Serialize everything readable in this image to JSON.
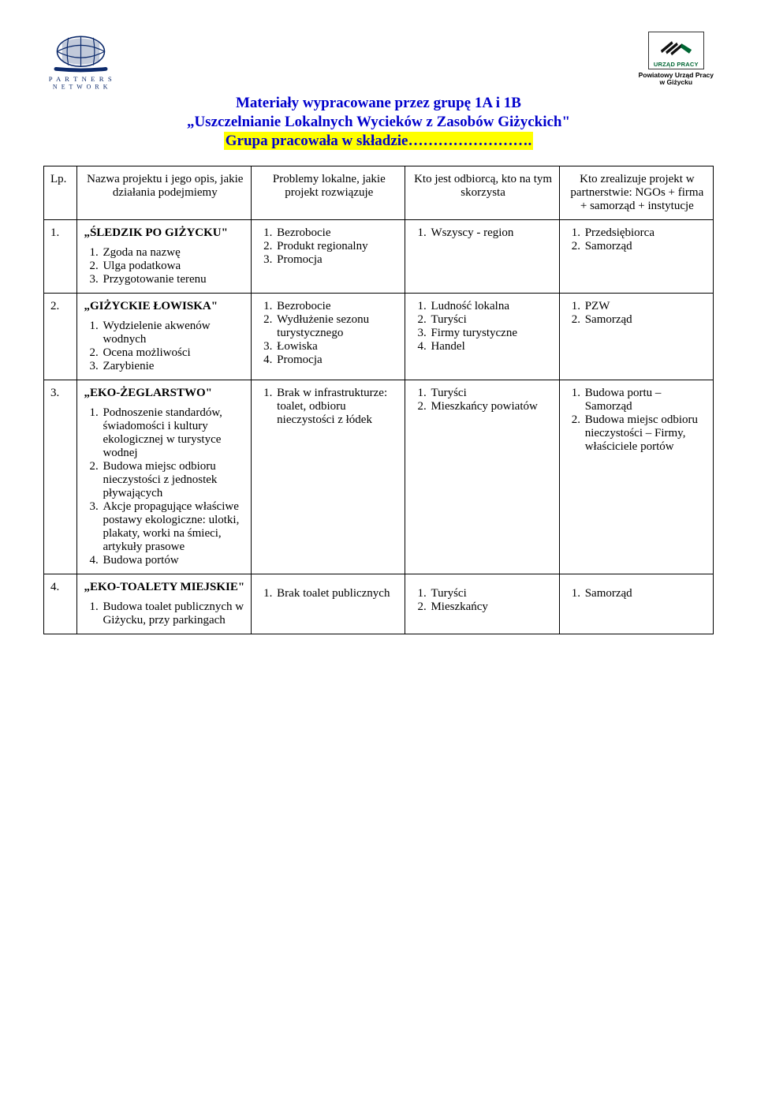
{
  "header": {
    "left_logo_text1": "P A R T N E R S",
    "left_logo_text2": "N E T W O R K",
    "right_logo_label": "URZĄD PRACY",
    "right_caption_l1": "Powiatowy Urząd Pracy",
    "right_caption_l2": "w Giżycku"
  },
  "title": {
    "line1": "Materiały wypracowane przez grupę 1A i 1B",
    "line2": "„Uszczelnianie Lokalnych Wycieków z Zasobów Giżyckich\"",
    "line3": "Grupa pracowała w składzie……………………."
  },
  "columns": {
    "lp": "Lp.",
    "name": "Nazwa projektu i jego opis, jakie działania podejmiemy",
    "problems": "Problemy lokalne, jakie projekt rozwiązuje",
    "who": "Kto jest odbiorcą, kto na tym skorzysta",
    "realizer": "Kto zrealizuje projekt w partnerstwie: NGOs + firma + samorząd + instytucje"
  },
  "rows": [
    {
      "lp": "1.",
      "title": "„ŚLEDZIK PO GIŻYCKU\"",
      "actions": [
        "Zgoda na nazwę",
        "Ulga podatkowa",
        "Przygotowanie terenu"
      ],
      "problems": [
        "Bezrobocie",
        "Produkt regionalny",
        "Promocja"
      ],
      "who": [
        "Wszyscy - region"
      ],
      "realizer": [
        "Przedsiębiorca",
        "Samorząd"
      ]
    },
    {
      "lp": "2.",
      "title": "„GIŻYCKIE ŁOWISKA\"",
      "actions": [
        "Wydzielenie akwenów wodnych",
        "Ocena możliwości",
        "Zarybienie"
      ],
      "problems": [
        "Bezrobocie",
        "Wydłużenie sezonu turystycznego",
        "Łowiska",
        "Promocja"
      ],
      "who": [
        "Ludność lokalna",
        "Turyści",
        "Firmy turystyczne",
        "Handel"
      ],
      "realizer": [
        " PZW",
        "Samorząd"
      ]
    },
    {
      "lp": "3.",
      "title": "„EKO-ŻEGLARSTWO\"",
      "actions": [
        "Podnoszenie standardów, świadomości i kultury ekologicznej w turystyce wodnej",
        "Budowa miejsc odbioru nieczystości z jednostek pływających",
        "Akcje propagujące właściwe postawy ekologiczne: ulotki, plakaty, worki na śmieci, artykuły prasowe",
        "Budowa portów"
      ],
      "problems": [
        "Brak w infrastrukturze: toalet, odbioru nieczystości z łódek"
      ],
      "problems_indent": true,
      "who": [
        "Turyści",
        "Mieszkańcy powiatów"
      ],
      "realizer": [
        "Budowa portu – Samorząd",
        "Budowa miejsc odbioru nieczystości – Firmy, właściciele portów"
      ]
    },
    {
      "lp": "4.",
      "title": "„EKO-TOALETY MIEJSKIE\"",
      "actions": [
        "Budowa toalet publicznych w Giżycku, przy parkingach"
      ],
      "problems": [
        "Brak toalet publicznych"
      ],
      "who": [
        "Turyści",
        "Mieszkańcy"
      ],
      "realizer": [
        "Samorząd"
      ],
      "pad_before_lists": true
    }
  ],
  "colors": {
    "title_color": "#0000cc",
    "highlight_bg": "#ffff00",
    "logo_globe": "#0d2a6b",
    "logo_green": "#006633",
    "border": "#000000"
  }
}
